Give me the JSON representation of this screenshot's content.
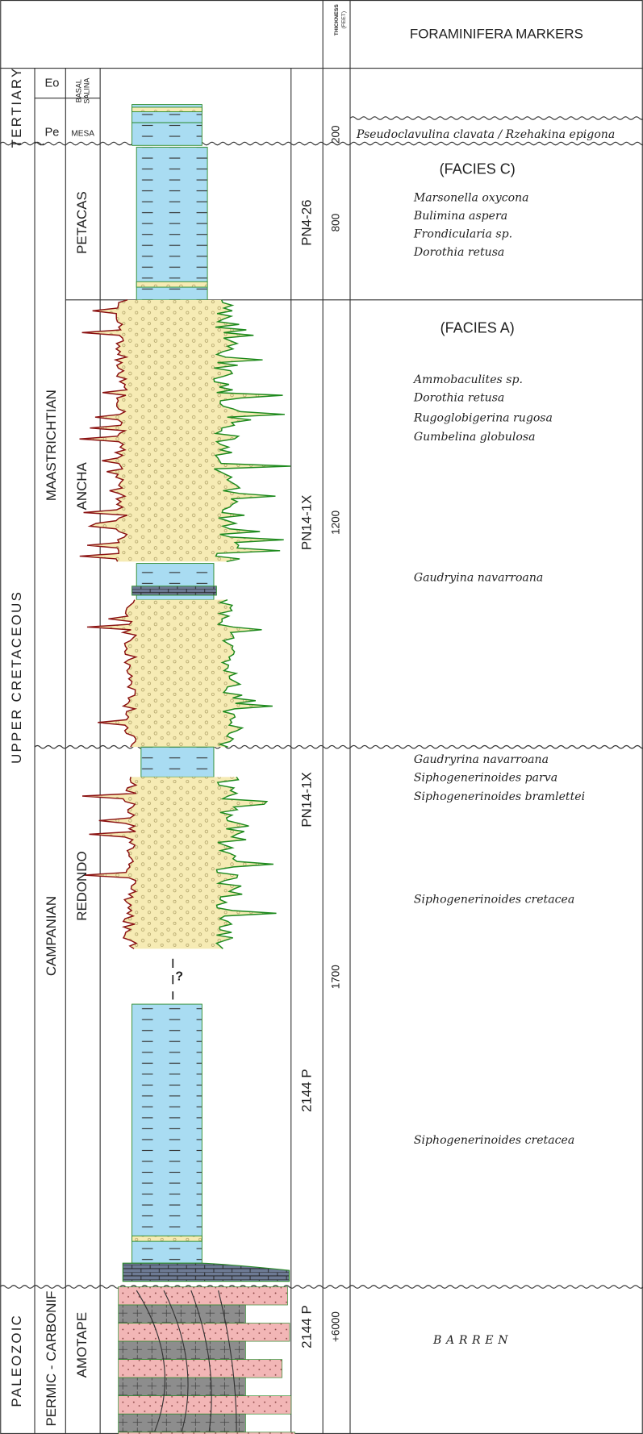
{
  "header": {
    "thickness_label": "THICKNESS",
    "thickness_unit": "(FEET)",
    "markers_title": "FORAMINIFERA MARKERS"
  },
  "eras": [
    "TERTIARY",
    "UPPER  CRETACEOUS",
    "PALEOZOIC"
  ],
  "periods": [
    "Eo",
    "Pe",
    "MAASTRICHTIAN",
    "CAMPANIAN",
    "PERMIC - CARBONIF"
  ],
  "formations": [
    {
      "label": [
        "BASAL",
        "SALINA"
      ]
    },
    {
      "label": [
        "MESA"
      ]
    },
    {
      "label": [
        "PETACAS"
      ]
    },
    {
      "label": [
        "ANCHA"
      ]
    },
    {
      "label": [
        "REDONDO"
      ]
    },
    {
      "label": [
        "AMOTAPE"
      ]
    }
  ],
  "wells": [
    "PN4-26",
    "PN14-1X",
    "PN14-1X",
    "2144 P",
    "2144 P"
  ],
  "thickness": [
    "200",
    "800",
    "1200",
    "1700",
    "+6000"
  ],
  "markers": [
    "Pseudoclavulina clavata / Rzehakina epigona",
    "(FACIES C)",
    "Marsonella oxycona",
    "Bulimina aspera",
    "Frondicularia sp.",
    "Dorothia retusa",
    "(FACIES A)",
    "Ammobaculites sp.",
    "Dorothia retusa",
    "Rugoglobigerina rugosa",
    "Gumbelina globulosa",
    "Gaudryina navarroana",
    "Gaudryrina navarroana",
    "Siphogenerinoides parva",
    "Siphogenerinoides bramlettei",
    "Siphogenerinoides cretacea",
    "Siphogenerinoides cretacea",
    "BARREN"
  ],
  "log_annotation": "?"
}
